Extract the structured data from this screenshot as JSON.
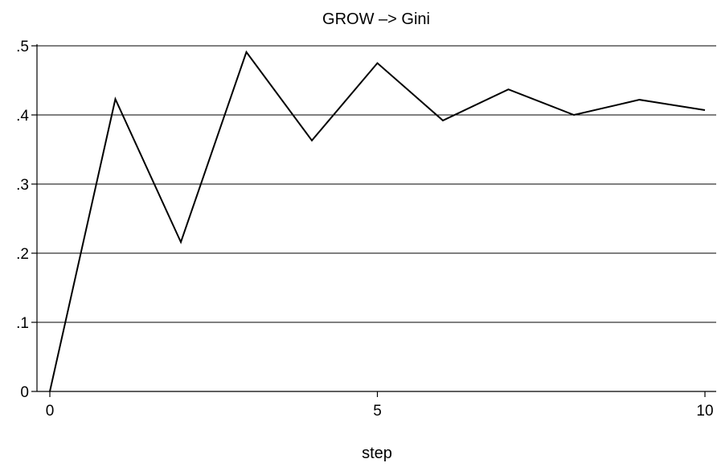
{
  "chart_data": {
    "type": "line",
    "title": "GROW –> Gini",
    "xlabel": "step",
    "ylabel": "",
    "x": [
      0,
      1,
      2,
      3,
      4,
      5,
      6,
      7,
      8,
      9,
      10
    ],
    "series": [
      {
        "values": [
          0.0,
          0.423,
          0.216,
          0.491,
          0.363,
          0.475,
          0.392,
          0.437,
          0.4,
          0.422,
          0.407
        ]
      }
    ],
    "xlim": [
      0,
      10
    ],
    "ylim": [
      0,
      0.5
    ],
    "xticks": [
      0,
      5,
      10
    ],
    "xtick_labels": [
      "0",
      "5",
      "10"
    ],
    "yticks": [
      0,
      0.1,
      0.2,
      0.3,
      0.4,
      0.5
    ],
    "ytick_labels": [
      "0",
      ".1",
      ".2",
      ".3",
      ".4",
      ".5"
    ],
    "grid": "horizontal",
    "legend": "none",
    "line_color": "#000000"
  }
}
